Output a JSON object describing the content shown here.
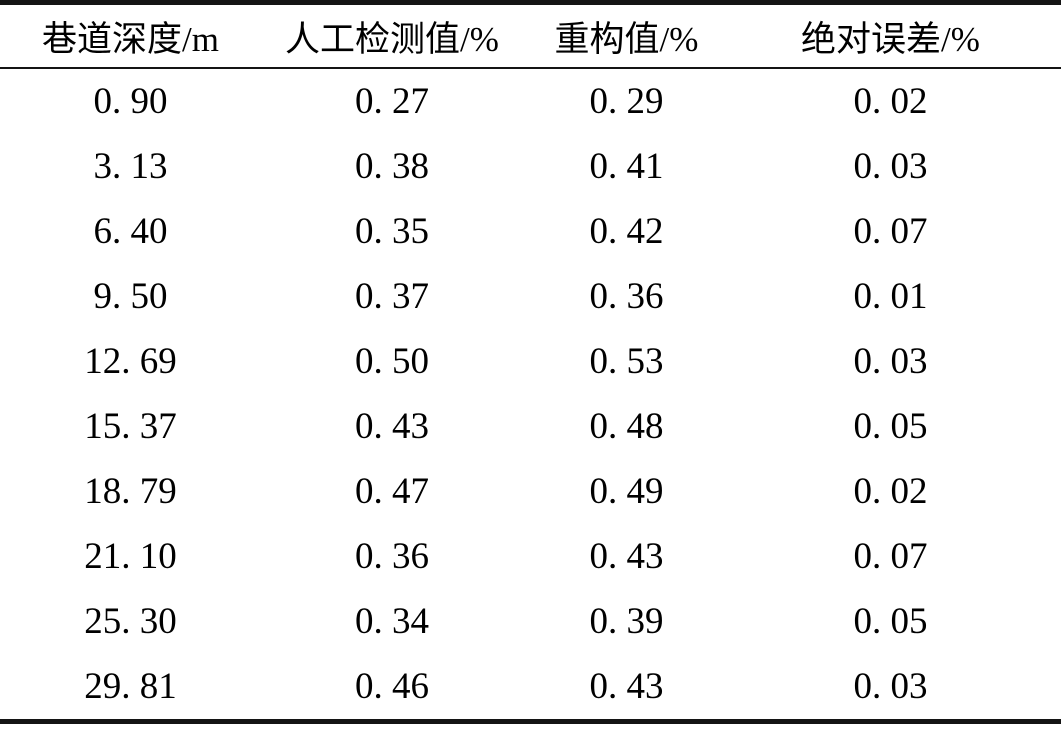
{
  "table": {
    "headers": [
      "巷道深度/m",
      "人工检测值/%",
      "重构值/%",
      "绝对误差/%"
    ],
    "rows": [
      [
        "0. 90",
        "0. 27",
        "0. 29",
        "0. 02"
      ],
      [
        "3. 13",
        "0. 38",
        "0. 41",
        "0. 03"
      ],
      [
        "6. 40",
        "0. 35",
        "0. 42",
        "0. 07"
      ],
      [
        "9. 50",
        "0. 37",
        "0. 36",
        "0. 01"
      ],
      [
        "12. 69",
        "0. 50",
        "0. 53",
        "0. 03"
      ],
      [
        "15. 37",
        "0. 43",
        "0. 48",
        "0. 05"
      ],
      [
        "18. 79",
        "0. 47",
        "0. 49",
        "0. 02"
      ],
      [
        "21. 10",
        "0. 36",
        "0. 43",
        "0. 07"
      ],
      [
        "25. 30",
        "0. 34",
        "0. 39",
        "0. 05"
      ],
      [
        "29. 81",
        "0. 46",
        "0. 43",
        "0. 03"
      ]
    ]
  },
  "chart_data": {
    "type": "table",
    "columns": [
      "巷道深度/m",
      "人工检测值/%",
      "重构值/%",
      "绝对误差/%"
    ],
    "rows": [
      [
        0.9,
        0.27,
        0.29,
        0.02
      ],
      [
        3.13,
        0.38,
        0.41,
        0.03
      ],
      [
        6.4,
        0.35,
        0.42,
        0.07
      ],
      [
        9.5,
        0.37,
        0.36,
        0.01
      ],
      [
        12.69,
        0.5,
        0.53,
        0.03
      ],
      [
        15.37,
        0.43,
        0.48,
        0.05
      ],
      [
        18.79,
        0.47,
        0.49,
        0.02
      ],
      [
        21.1,
        0.36,
        0.43,
        0.07
      ],
      [
        25.3,
        0.34,
        0.39,
        0.05
      ],
      [
        29.81,
        0.46,
        0.43,
        0.03
      ]
    ]
  },
  "colors": {
    "rule": "#141414",
    "text": "#000000",
    "background": "#ffffff"
  }
}
